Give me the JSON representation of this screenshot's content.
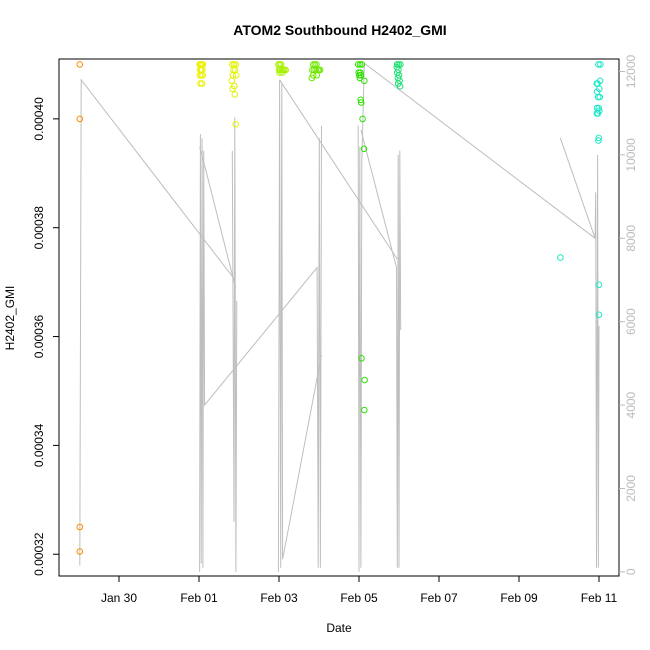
{
  "chart_data": {
    "type": "scatter",
    "title": "ATOM2 Southbound H2402_GMI",
    "xlabel": "Date",
    "ylabel": "H2402_GMI",
    "x_range": [
      "2025-01-28T12:00",
      "2025-02-11T12:00"
    ],
    "x_ticks": [
      {
        "date": "2025-01-30",
        "label": "Jan 30"
      },
      {
        "date": "2025-02-01",
        "label": "Feb 01"
      },
      {
        "date": "2025-02-03",
        "label": "Feb 03"
      },
      {
        "date": "2025-02-05",
        "label": "Feb 05"
      },
      {
        "date": "2025-02-07",
        "label": "Feb 07"
      },
      {
        "date": "2025-02-09",
        "label": "Feb 09"
      },
      {
        "date": "2025-02-11",
        "label": "Feb 11"
      }
    ],
    "ylim": [
      0.000316,
      0.000411
    ],
    "y_ticks": [
      0.00032,
      0.00034,
      0.00036,
      0.00038,
      0.0004
    ],
    "y_tick_labels": [
      "0.00032",
      "0.00034",
      "0.00036",
      "0.00038",
      "0.00040"
    ],
    "y2lim": [
      -100,
      12300
    ],
    "y2_ticks": [
      0,
      2000,
      4000,
      6000,
      8000,
      10000,
      12000
    ],
    "y2_tick_labels": [
      "0",
      "2000",
      "4000",
      "6000",
      "8000",
      "10000",
      "12000"
    ],
    "grid": false,
    "colors": {
      "axis": "#000000",
      "secondary_axis": "#bbbbbb",
      "line": "#bebebe"
    },
    "points": [
      {
        "x": "2025-01-29T00:30",
        "y": 0.00041,
        "color": "#ff8c00"
      },
      {
        "x": "2025-01-29T00:30",
        "y": 0.0004,
        "color": "#ff8c00"
      },
      {
        "x": "2025-01-29T00:30",
        "y": 0.000325,
        "color": "#ff8c00"
      },
      {
        "x": "2025-01-29T00:30",
        "y": 0.0003205,
        "color": "#ff8c00"
      },
      {
        "x": "2025-02-01T00:20",
        "y": 0.00041,
        "color": "#ecf000"
      },
      {
        "x": "2025-02-01T01:00",
        "y": 0.00041,
        "color": "#ecf000"
      },
      {
        "x": "2025-02-01T01:40",
        "y": 0.00041,
        "color": "#ecf000"
      },
      {
        "x": "2025-02-01T02:20",
        "y": 0.00041,
        "color": "#ecf000"
      },
      {
        "x": "2025-02-01T00:40",
        "y": 0.000409,
        "color": "#ecf000"
      },
      {
        "x": "2025-02-01T01:20",
        "y": 0.000409,
        "color": "#ecf000"
      },
      {
        "x": "2025-02-01T02:00",
        "y": 0.000409,
        "color": "#ecf000"
      },
      {
        "x": "2025-02-01T00:30",
        "y": 0.000408,
        "color": "#ecf000"
      },
      {
        "x": "2025-02-01T01:30",
        "y": 0.000408,
        "color": "#ecf000"
      },
      {
        "x": "2025-02-01T02:10",
        "y": 0.000408,
        "color": "#ecf000"
      },
      {
        "x": "2025-02-01T00:50",
        "y": 0.0004065,
        "color": "#ecf000"
      },
      {
        "x": "2025-02-01T01:50",
        "y": 0.0004065,
        "color": "#ecf000"
      },
      {
        "x": "2025-02-01T20:00",
        "y": 0.00041,
        "color": "#e2f200"
      },
      {
        "x": "2025-02-01T21:00",
        "y": 0.00041,
        "color": "#e2f200"
      },
      {
        "x": "2025-02-01T22:00",
        "y": 0.00041,
        "color": "#e2f200"
      },
      {
        "x": "2025-02-01T20:40",
        "y": 0.000409,
        "color": "#e2f200"
      },
      {
        "x": "2025-02-01T21:40",
        "y": 0.000409,
        "color": "#e2f200"
      },
      {
        "x": "2025-02-01T20:20",
        "y": 0.000408,
        "color": "#e2f200"
      },
      {
        "x": "2025-02-01T22:20",
        "y": 0.000408,
        "color": "#e2f200"
      },
      {
        "x": "2025-02-01T19:40",
        "y": 0.000407,
        "color": "#e2f200"
      },
      {
        "x": "2025-02-01T21:10",
        "y": 0.000406,
        "color": "#e2f200"
      },
      {
        "x": "2025-02-01T20:10",
        "y": 0.0004055,
        "color": "#e2f200"
      },
      {
        "x": "2025-02-01T21:30",
        "y": 0.0004045,
        "color": "#e2f200"
      },
      {
        "x": "2025-02-01T22:00",
        "y": 0.000399,
        "color": "#e2f200"
      },
      {
        "x": "2025-02-02T23:40",
        "y": 0.00041,
        "color": "#a8f000"
      },
      {
        "x": "2025-02-03T00:30",
        "y": 0.00041,
        "color": "#a8f000"
      },
      {
        "x": "2025-02-03T01:20",
        "y": 0.00041,
        "color": "#a8f000"
      },
      {
        "x": "2025-02-03T00:00",
        "y": 0.000409,
        "color": "#a8f000"
      },
      {
        "x": "2025-02-03T00:50",
        "y": 0.000409,
        "color": "#a8f000"
      },
      {
        "x": "2025-02-03T01:40",
        "y": 0.000409,
        "color": "#a8f000"
      },
      {
        "x": "2025-02-03T02:30",
        "y": 0.000409,
        "color": "#a8f000"
      },
      {
        "x": "2025-02-03T03:10",
        "y": 0.000409,
        "color": "#a8f000"
      },
      {
        "x": "2025-02-03T04:00",
        "y": 0.000409,
        "color": "#a8f000"
      },
      {
        "x": "2025-02-03T00:20",
        "y": 0.0004085,
        "color": "#a8f000"
      },
      {
        "x": "2025-02-03T02:00",
        "y": 0.0004085,
        "color": "#a8f000"
      },
      {
        "x": "2025-02-03T20:30",
        "y": 0.00041,
        "color": "#6fe800"
      },
      {
        "x": "2025-02-03T21:30",
        "y": 0.00041,
        "color": "#6fe800"
      },
      {
        "x": "2025-02-03T22:30",
        "y": 0.00041,
        "color": "#6fe800"
      },
      {
        "x": "2025-02-03T20:00",
        "y": 0.000409,
        "color": "#6fe800"
      },
      {
        "x": "2025-02-03T21:00",
        "y": 0.000409,
        "color": "#6fe800"
      },
      {
        "x": "2025-02-03T22:00",
        "y": 0.000409,
        "color": "#6fe800"
      },
      {
        "x": "2025-02-03T23:10",
        "y": 0.000409,
        "color": "#6fe800"
      },
      {
        "x": "2025-02-04T00:00",
        "y": 0.000409,
        "color": "#6fe800"
      },
      {
        "x": "2025-02-04T00:40",
        "y": 0.000409,
        "color": "#6fe800"
      },
      {
        "x": "2025-02-03T20:30",
        "y": 0.000408,
        "color": "#6fe800"
      },
      {
        "x": "2025-02-03T22:40",
        "y": 0.000408,
        "color": "#6fe800"
      },
      {
        "x": "2025-02-03T19:40",
        "y": 0.0004075,
        "color": "#6fe800"
      },
      {
        "x": "2025-02-04T23:30",
        "y": 0.00041,
        "color": "#2ee000"
      },
      {
        "x": "2025-02-05T00:40",
        "y": 0.00041,
        "color": "#2ee000"
      },
      {
        "x": "2025-02-05T01:40",
        "y": 0.00041,
        "color": "#2ee000"
      },
      {
        "x": "2025-02-04T23:50",
        "y": 0.0004085,
        "color": "#2ee000"
      },
      {
        "x": "2025-02-05T00:50",
        "y": 0.0004085,
        "color": "#2ee000"
      },
      {
        "x": "2025-02-05T00:10",
        "y": 0.000408,
        "color": "#2ee000"
      },
      {
        "x": "2025-02-05T01:10",
        "y": 0.000408,
        "color": "#2ee000"
      },
      {
        "x": "2025-02-05T00:30",
        "y": 0.0004075,
        "color": "#2ee000"
      },
      {
        "x": "2025-02-05T03:10",
        "y": 0.000407,
        "color": "#2ee000"
      },
      {
        "x": "2025-02-05T01:00",
        "y": 0.0004035,
        "color": "#2ee000"
      },
      {
        "x": "2025-02-05T01:20",
        "y": 0.000403,
        "color": "#2ee000"
      },
      {
        "x": "2025-02-05T02:10",
        "y": 0.0004,
        "color": "#2ee000"
      },
      {
        "x": "2025-02-05T03:00",
        "y": 0.0003945,
        "color": "#2ee000"
      },
      {
        "x": "2025-02-05T01:30",
        "y": 0.000356,
        "color": "#2ee000"
      },
      {
        "x": "2025-02-05T03:20",
        "y": 0.000352,
        "color": "#2ee000"
      },
      {
        "x": "2025-02-05T03:10",
        "y": 0.0003465,
        "color": "#2ee000"
      },
      {
        "x": "2025-02-05T22:50",
        "y": 0.00041,
        "color": "#1ae070"
      },
      {
        "x": "2025-02-05T23:50",
        "y": 0.00041,
        "color": "#1ae070"
      },
      {
        "x": "2025-02-06T00:50",
        "y": 0.00041,
        "color": "#1ae070"
      },
      {
        "x": "2025-02-05T22:40",
        "y": 0.0004095,
        "color": "#1ae070"
      },
      {
        "x": "2025-02-05T23:40",
        "y": 0.000409,
        "color": "#1ae070"
      },
      {
        "x": "2025-02-05T23:00",
        "y": 0.0004085,
        "color": "#1ae070"
      },
      {
        "x": "2025-02-06T00:00",
        "y": 0.000408,
        "color": "#1ae070"
      },
      {
        "x": "2025-02-05T23:20",
        "y": 0.0004075,
        "color": "#1ae070"
      },
      {
        "x": "2025-02-06T00:20",
        "y": 0.000407,
        "color": "#1ae070"
      },
      {
        "x": "2025-02-05T23:30",
        "y": 0.0004065,
        "color": "#1ae070"
      },
      {
        "x": "2025-02-06T00:40",
        "y": 0.000406,
        "color": "#1ae070"
      },
      {
        "x": "2025-02-10T00:50",
        "y": 0.0003745,
        "color": "#1ce8c8"
      },
      {
        "x": "2025-02-10T22:40",
        "y": 0.0004065,
        "color": "#1ce8c8"
      },
      {
        "x": "2025-02-10T23:40",
        "y": 0.00041,
        "color": "#1ce8c8"
      },
      {
        "x": "2025-02-11T00:50",
        "y": 0.00041,
        "color": "#1ce8c8"
      },
      {
        "x": "2025-02-10T23:10",
        "y": 0.0004065,
        "color": "#1ce8c8"
      },
      {
        "x": "2025-02-11T00:40",
        "y": 0.000407,
        "color": "#1ce8c8"
      },
      {
        "x": "2025-02-10T22:50",
        "y": 0.000405,
        "color": "#1ce8c8"
      },
      {
        "x": "2025-02-11T00:10",
        "y": 0.0004055,
        "color": "#1ce8c8"
      },
      {
        "x": "2025-02-10T23:30",
        "y": 0.000404,
        "color": "#1ce8c8"
      },
      {
        "x": "2025-02-11T00:30",
        "y": 0.000404,
        "color": "#1ce8c8"
      },
      {
        "x": "2025-02-10T22:50",
        "y": 0.000402,
        "color": "#1ce8c8"
      },
      {
        "x": "2025-02-10T23:50",
        "y": 0.000402,
        "color": "#1ce8c8"
      },
      {
        "x": "2025-02-11T00:10",
        "y": 0.0004015,
        "color": "#1ce8c8"
      },
      {
        "x": "2025-02-10T22:40",
        "y": 0.000401,
        "color": "#1ce8c8"
      },
      {
        "x": "2025-02-10T23:20",
        "y": 0.000401,
        "color": "#1ce8c8"
      },
      {
        "x": "2025-02-10T23:50",
        "y": 0.0003965,
        "color": "#1ce8c8"
      },
      {
        "x": "2025-02-10T23:40",
        "y": 0.000396,
        "color": "#1ce8c8"
      },
      {
        "x": "2025-02-11T00:00",
        "y": 0.0003695,
        "color": "#1ce8c8"
      },
      {
        "x": "2025-02-11T00:00",
        "y": 0.000364,
        "color": "#1ce8c8"
      }
    ],
    "secondary_series": {
      "name": "",
      "axis": "right",
      "paths": [
        [
          [
            "2025-01-29T00:30",
            150
          ],
          [
            "2025-01-29T01:20",
            11800
          ],
          [
            "2025-02-01T21:40",
            7000
          ]
        ],
        [
          [
            "2025-02-01T00:20",
            0
          ],
          [
            "2025-02-01T00:50",
            10500
          ],
          [
            "2025-02-01T01:20",
            200
          ],
          [
            "2025-02-01T01:50",
            10400
          ],
          [
            "2025-02-01T02:20",
            100
          ],
          [
            "2025-02-01T02:50",
            10100
          ],
          [
            "2025-02-01T03:20",
            4000
          ],
          [
            "2025-02-03T22:50",
            7300
          ],
          [
            "2025-02-03T23:30",
            100
          ],
          [
            "2025-02-04T00:10",
            10400
          ],
          [
            "2025-02-04T00:50",
            100
          ],
          [
            "2025-02-04T01:30",
            10700
          ]
        ],
        [
          [
            "2025-02-01T00:20",
            10200
          ],
          [
            "2025-02-01T03:40",
            9700
          ],
          [
            "2025-02-01T22:00",
            6800
          ]
        ],
        [
          [
            "2025-02-01T20:00",
            10100
          ],
          [
            "2025-02-01T21:00",
            1200
          ],
          [
            "2025-02-01T21:30",
            10900
          ],
          [
            "2025-02-01T22:10",
            0
          ],
          [
            "2025-02-01T22:40",
            6500
          ]
        ],
        [
          [
            "2025-02-02T23:40",
            0
          ],
          [
            "2025-02-03T00:20",
            11800
          ],
          [
            "2025-02-03T01:00",
            100
          ],
          [
            "2025-02-03T01:40",
            11700
          ],
          [
            "2025-02-03T02:10",
            300
          ],
          [
            "2025-02-04T01:30",
            5200
          ]
        ],
        [
          [
            "2025-02-03T00:20",
            11800
          ],
          [
            "2025-02-05T23:00",
            7500
          ]
        ],
        [
          [
            "2025-02-04T23:30",
            10700
          ],
          [
            "2025-02-05T00:00",
            0
          ],
          [
            "2025-02-05T00:30",
            10200
          ],
          [
            "2025-02-05T01:10",
            100
          ],
          [
            "2025-02-05T01:40",
            9800
          ],
          [
            "2025-02-05T03:10",
            12200
          ],
          [
            "2025-02-10T21:40",
            8000
          ]
        ],
        [
          [
            "2025-02-05T01:10",
            10600
          ],
          [
            "2025-02-05T22:30",
            7300
          ],
          [
            "2025-02-05T23:00",
            100
          ],
          [
            "2025-02-05T23:30",
            10000
          ],
          [
            "2025-02-06T00:00",
            100
          ],
          [
            "2025-02-06T00:30",
            10100
          ],
          [
            "2025-02-06T01:00",
            5800
          ]
        ],
        [
          [
            "2025-02-10T00:50",
            10400
          ],
          [
            "2025-02-10T21:40",
            8000
          ],
          [
            "2025-02-10T22:00",
            9100
          ],
          [
            "2025-02-10T22:30",
            100
          ],
          [
            "2025-02-10T23:10",
            10000
          ],
          [
            "2025-02-10T23:40",
            100
          ],
          [
            "2025-02-11T00:00",
            5900
          ]
        ]
      ]
    }
  }
}
